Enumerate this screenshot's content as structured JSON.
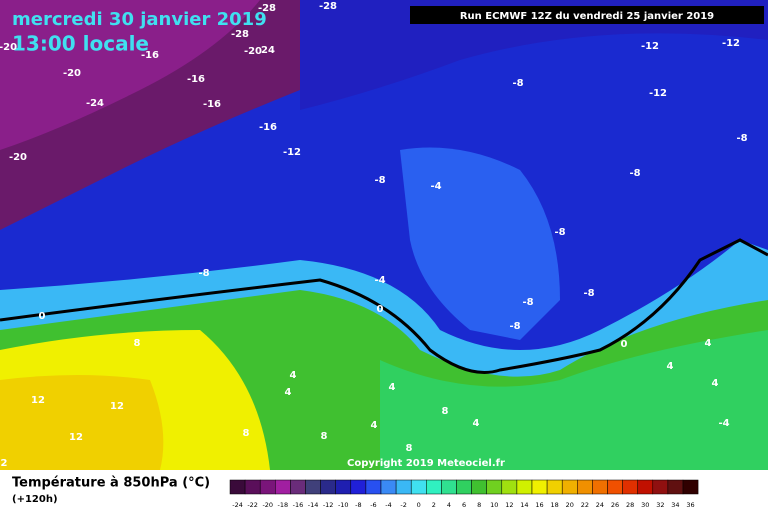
{
  "header": {
    "date": "mercredi 30 janvier 2019",
    "time": "13:00 locale",
    "run": "Run ECMWF 12Z du vendredi 25 janvier 2019"
  },
  "copyright": "Copyright 2019 Meteociel.fr",
  "contour_labels": [
    "-20",
    "-20",
    "-24",
    "-20",
    "-28",
    "-28",
    "-28",
    "-20",
    "24",
    "-16",
    "-16",
    "-16",
    "-16",
    "-12",
    "-8",
    "-12",
    "-12",
    "-12",
    "-8",
    "-8",
    "-4",
    "-8",
    "-8",
    "-8",
    "-4",
    "0",
    "0",
    "-8",
    "-8",
    "-8",
    "0",
    "8",
    "4",
    "4",
    "4",
    "12",
    "12",
    "12",
    "8",
    "8",
    "4",
    "8",
    "4",
    "8",
    "4",
    "4",
    "-4",
    "4",
    "2"
  ],
  "legend": {
    "title": "Température à 850hPa (°C)",
    "subtitle": "(+120h)",
    "ticks": [
      -24,
      -22,
      -20,
      -18,
      -16,
      -14,
      -12,
      -10,
      -8,
      -6,
      -4,
      -2,
      0,
      2,
      4,
      6,
      8,
      10,
      12,
      14,
      16,
      18,
      20,
      22,
      24,
      26,
      28,
      30,
      32,
      34,
      36
    ],
    "colors": [
      "#3a0a3a",
      "#5a0f5a",
      "#7a157a",
      "#a11fa1",
      "#6a2c7a",
      "#40407a",
      "#2a2a8a",
      "#1f1fb0",
      "#2020d8",
      "#2850f0",
      "#3a8af5",
      "#3ab8f5",
      "#40e0f0",
      "#30f0c0",
      "#30e090",
      "#30d060",
      "#40c030",
      "#70d020",
      "#a0e010",
      "#d0f000",
      "#f0f000",
      "#f0d000",
      "#f0b000",
      "#f09000",
      "#f07000",
      "#f05000",
      "#e03000",
      "#c01000",
      "#901010",
      "#601010",
      "#300000"
    ]
  }
}
